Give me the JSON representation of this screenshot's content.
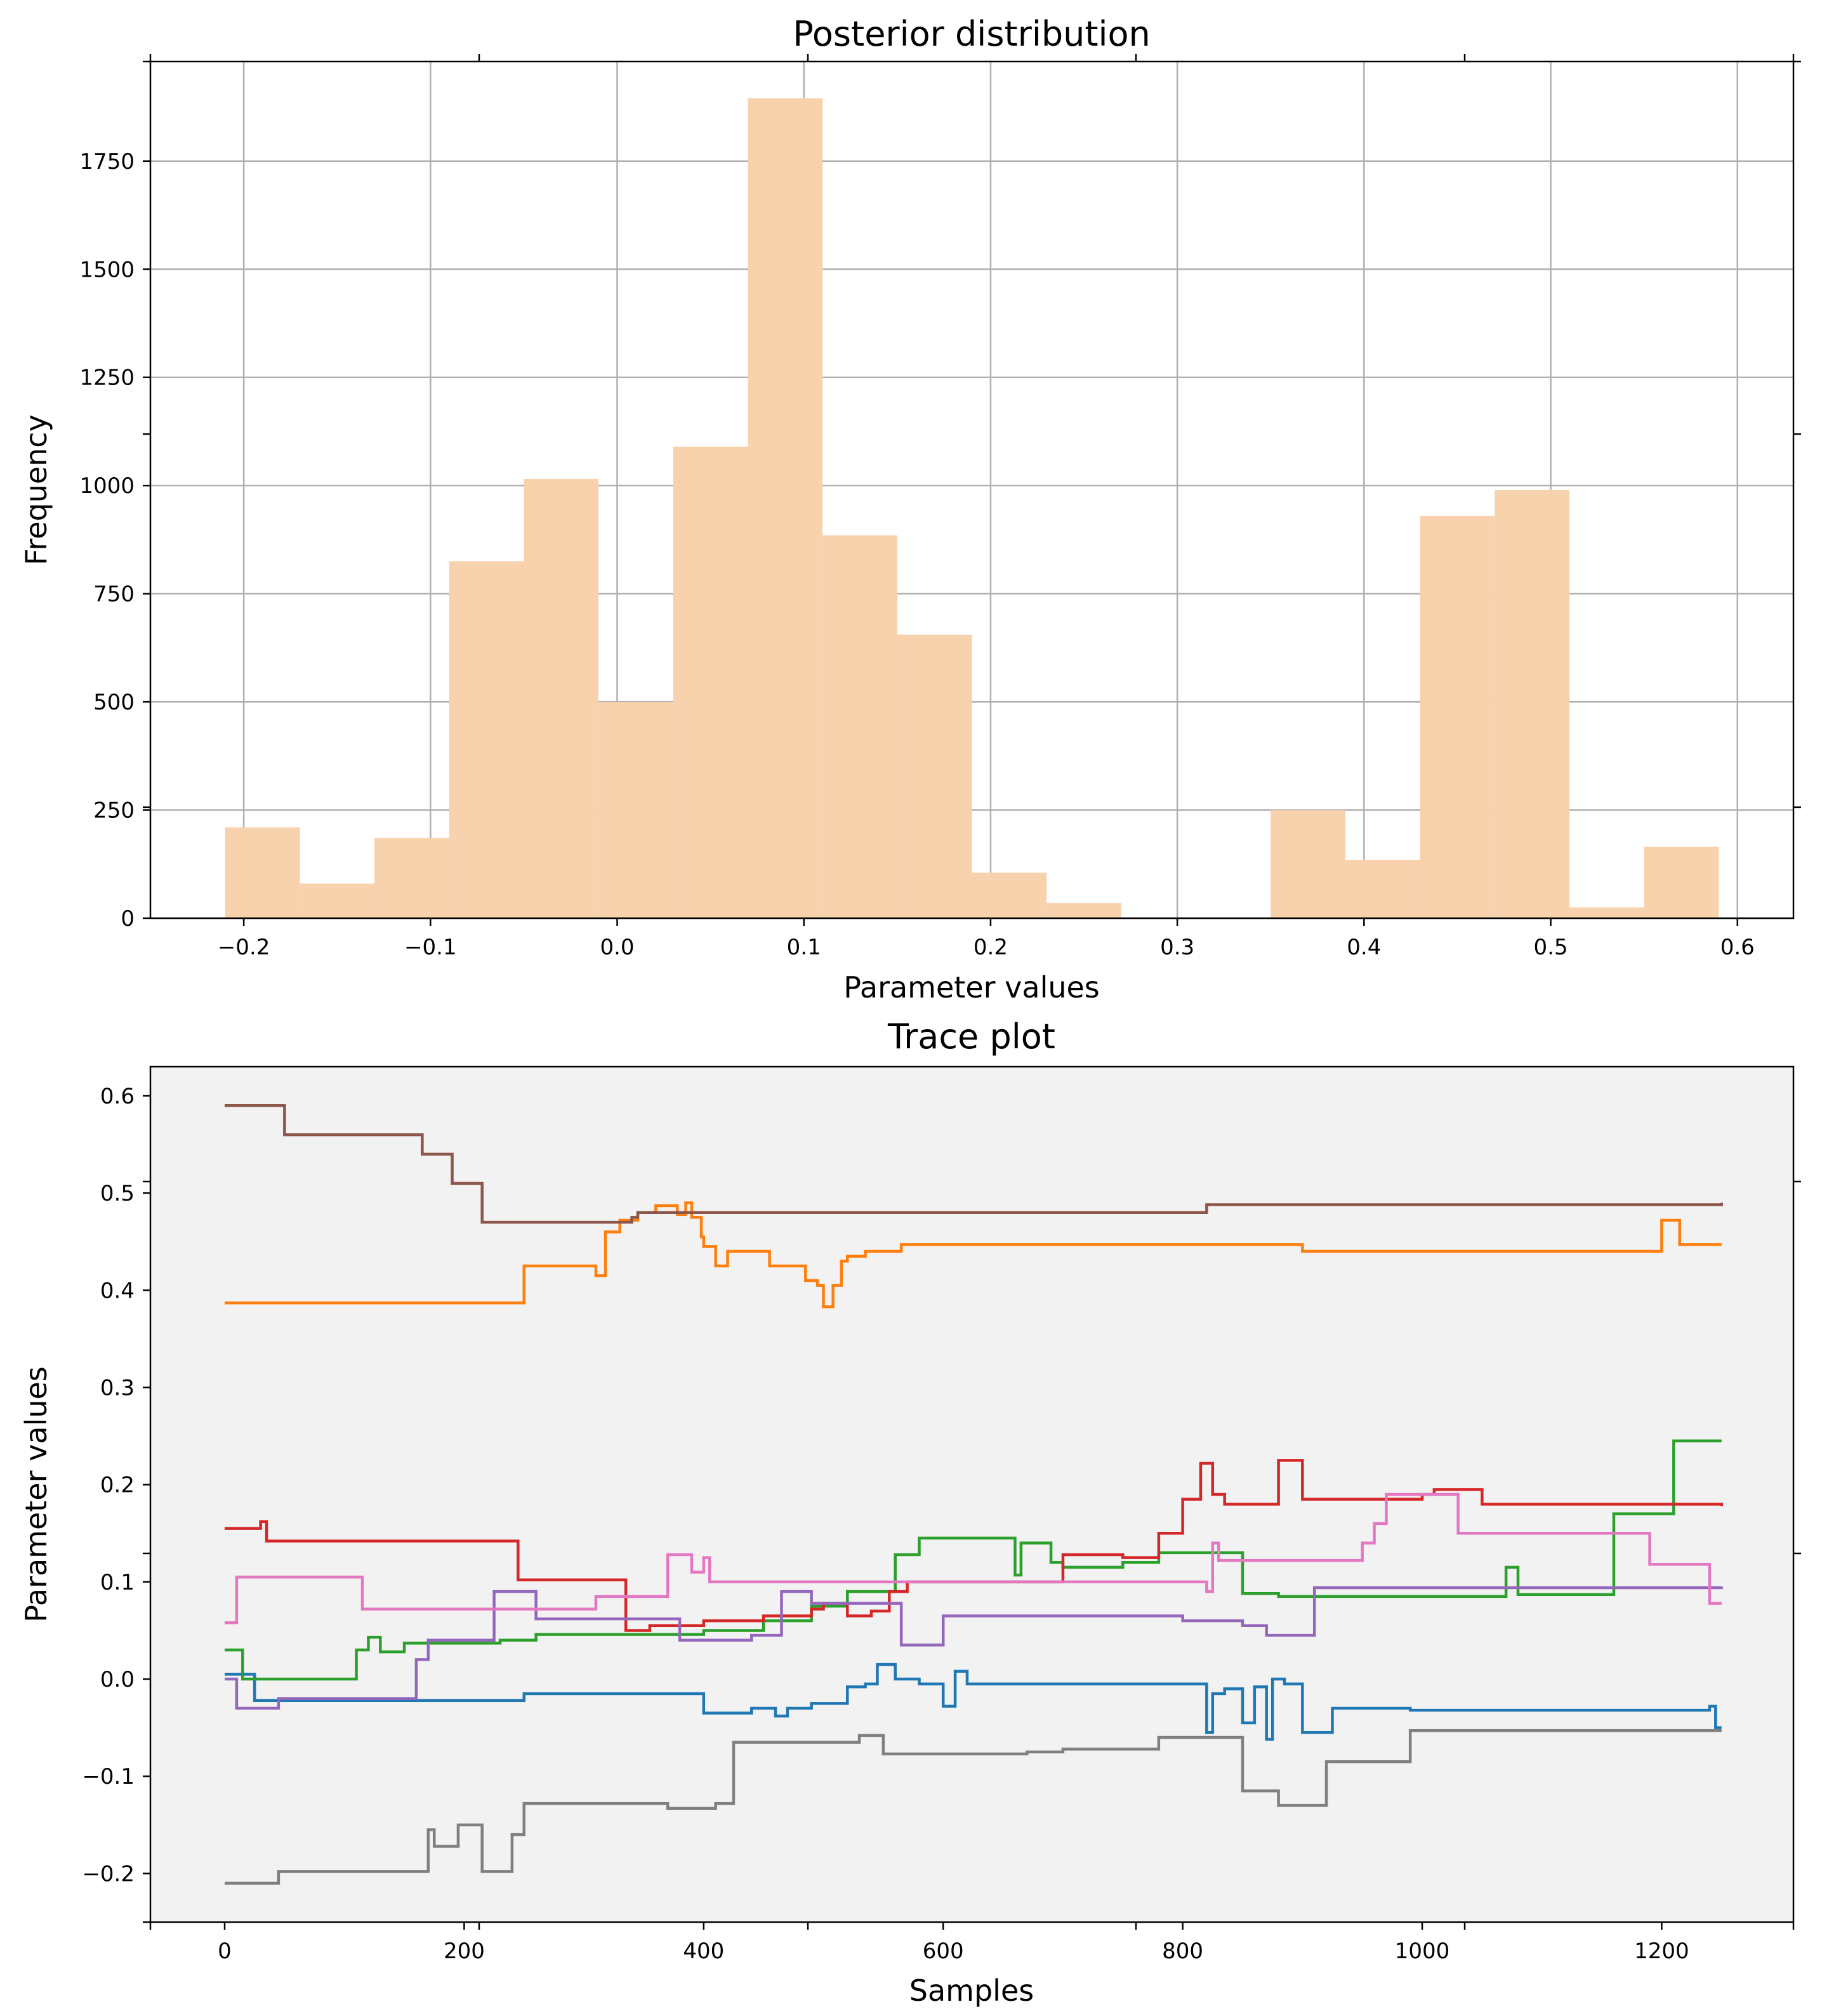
{
  "chart_data": [
    {
      "type": "bar",
      "title": "Posterior distribution",
      "xlabel": "Parameter values",
      "ylabel": "Frequency",
      "xlim": [
        -0.25,
        0.63
      ],
      "ylim": [
        0,
        1980
      ],
      "grid": true,
      "bar_color": "#f8d1ad",
      "x_ticks": [
        -0.2,
        -0.1,
        0.0,
        0.1,
        0.2,
        0.3,
        0.4,
        0.5,
        0.6
      ],
      "x_tick_labels": [
        "−0.2",
        "−0.1",
        "0.0",
        "0.1",
        "0.2",
        "0.3",
        "0.4",
        "0.5",
        "0.6"
      ],
      "y_ticks": [
        0,
        250,
        500,
        750,
        1000,
        1250,
        1500,
        1750
      ],
      "y_tick_labels": [
        "0",
        "250",
        "500",
        "750",
        "1000",
        "1250",
        "1500",
        "1750"
      ],
      "bin_edges": [
        -0.21,
        -0.17,
        -0.13,
        -0.09,
        -0.05,
        -0.01,
        0.03,
        0.07,
        0.11,
        0.15,
        0.19,
        0.23,
        0.27,
        0.31,
        0.35,
        0.39,
        0.43,
        0.47,
        0.51,
        0.55,
        0.59
      ],
      "values": [
        210,
        80,
        185,
        825,
        1015,
        500,
        1090,
        1895,
        885,
        655,
        105,
        35,
        0,
        0,
        250,
        135,
        930,
        990,
        25,
        165
      ]
    },
    {
      "type": "line",
      "title": "Trace plot",
      "xlabel": "Samples",
      "ylabel": "Parameter values",
      "xlim": [
        -62,
        1310
      ],
      "ylim": [
        -0.25,
        0.63
      ],
      "grid": false,
      "background": "#f2f2f2",
      "x_ticks": [
        0,
        200,
        400,
        600,
        800,
        1000,
        1200
      ],
      "x_tick_labels": [
        "0",
        "200",
        "400",
        "600",
        "800",
        "1000",
        "1200"
      ],
      "y_ticks": [
        -0.2,
        -0.1,
        0.0,
        0.1,
        0.2,
        0.3,
        0.4,
        0.5,
        0.6
      ],
      "y_tick_labels": [
        "−0.2",
        "−0.1",
        "0.0",
        "0.1",
        "0.2",
        "0.3",
        "0.4",
        "0.5",
        "0.6"
      ],
      "series": [
        {
          "color": "#1f77b4",
          "steps": [
            [
              0,
              0.005
            ],
            [
              25,
              -0.022
            ],
            [
              250,
              -0.015
            ],
            [
              400,
              -0.035
            ],
            [
              440,
              -0.03
            ],
            [
              460,
              -0.038
            ],
            [
              470,
              -0.03
            ],
            [
              490,
              -0.025
            ],
            [
              520,
              -0.008
            ],
            [
              535,
              -0.005
            ],
            [
              545,
              0.015
            ],
            [
              560,
              0.0
            ],
            [
              580,
              -0.005
            ],
            [
              600,
              -0.028
            ],
            [
              610,
              0.008
            ],
            [
              620,
              -0.005
            ],
            [
              820,
              -0.055
            ],
            [
              825,
              -0.015
            ],
            [
              835,
              -0.01
            ],
            [
              850,
              -0.045
            ],
            [
              860,
              -0.008
            ],
            [
              870,
              -0.062
            ],
            [
              875,
              0.0
            ],
            [
              885,
              -0.005
            ],
            [
              900,
              -0.055
            ],
            [
              925,
              -0.03
            ],
            [
              990,
              -0.032
            ],
            [
              1240,
              -0.028
            ],
            [
              1245,
              -0.05
            ]
          ]
        },
        {
          "color": "#ff7f0e",
          "steps": [
            [
              0,
              0.387
            ],
            [
              250,
              0.425
            ],
            [
              310,
              0.415
            ],
            [
              318,
              0.46
            ],
            [
              330,
              0.472
            ],
            [
              345,
              0.48
            ],
            [
              360,
              0.487
            ],
            [
              378,
              0.478
            ],
            [
              385,
              0.49
            ],
            [
              390,
              0.475
            ],
            [
              398,
              0.455
            ],
            [
              400,
              0.445
            ],
            [
              410,
              0.425
            ],
            [
              420,
              0.44
            ],
            [
              455,
              0.425
            ],
            [
              485,
              0.41
            ],
            [
              495,
              0.405
            ],
            [
              500,
              0.383
            ],
            [
              508,
              0.405
            ],
            [
              515,
              0.43
            ],
            [
              520,
              0.435
            ],
            [
              535,
              0.44
            ],
            [
              565,
              0.447
            ],
            [
              900,
              0.44
            ],
            [
              1200,
              0.472
            ],
            [
              1215,
              0.447
            ]
          ]
        },
        {
          "color": "#2ca02c",
          "steps": [
            [
              0,
              0.03
            ],
            [
              15,
              0.0
            ],
            [
              110,
              0.03
            ],
            [
              120,
              0.043
            ],
            [
              130,
              0.028
            ],
            [
              150,
              0.037
            ],
            [
              230,
              0.04
            ],
            [
              260,
              0.046
            ],
            [
              400,
              0.05
            ],
            [
              450,
              0.06
            ],
            [
              490,
              0.075
            ],
            [
              520,
              0.09
            ],
            [
              560,
              0.128
            ],
            [
              580,
              0.145
            ],
            [
              660,
              0.107
            ],
            [
              665,
              0.14
            ],
            [
              690,
              0.12
            ],
            [
              700,
              0.115
            ],
            [
              750,
              0.12
            ],
            [
              780,
              0.13
            ],
            [
              850,
              0.088
            ],
            [
              880,
              0.085
            ],
            [
              1080,
              0.087
            ],
            [
              1070,
              0.115
            ],
            [
              1160,
              0.17
            ],
            [
              1210,
              0.245
            ]
          ]
        },
        {
          "color": "#d62728",
          "steps": [
            [
              0,
              0.155
            ],
            [
              30,
              0.162
            ],
            [
              35,
              0.142
            ],
            [
              245,
              0.102
            ],
            [
              335,
              0.05
            ],
            [
              355,
              0.055
            ],
            [
              400,
              0.06
            ],
            [
              450,
              0.065
            ],
            [
              490,
              0.072
            ],
            [
              500,
              0.078
            ],
            [
              520,
              0.065
            ],
            [
              540,
              0.07
            ],
            [
              555,
              0.09
            ],
            [
              570,
              0.1
            ],
            [
              700,
              0.128
            ],
            [
              750,
              0.125
            ],
            [
              780,
              0.15
            ],
            [
              800,
              0.185
            ],
            [
              815,
              0.222
            ],
            [
              825,
              0.19
            ],
            [
              835,
              0.18
            ],
            [
              880,
              0.225
            ],
            [
              900,
              0.185
            ],
            [
              1000,
              0.19
            ],
            [
              1010,
              0.195
            ],
            [
              1050,
              0.18
            ],
            [
              1250,
              0.178
            ]
          ]
        },
        {
          "color": "#9467bd",
          "steps": [
            [
              0,
              0.0
            ],
            [
              10,
              -0.03
            ],
            [
              45,
              -0.02
            ],
            [
              160,
              0.02
            ],
            [
              170,
              0.04
            ],
            [
              225,
              0.09
            ],
            [
              260,
              0.062
            ],
            [
              380,
              0.04
            ],
            [
              440,
              0.045
            ],
            [
              465,
              0.09
            ],
            [
              490,
              0.078
            ],
            [
              565,
              0.035
            ],
            [
              600,
              0.065
            ],
            [
              800,
              0.06
            ],
            [
              850,
              0.055
            ],
            [
              870,
              0.045
            ],
            [
              910,
              0.094
            ],
            [
              1250,
              0.095
            ]
          ]
        },
        {
          "color": "#8c564b",
          "steps": [
            [
              0,
              0.59
            ],
            [
              50,
              0.56
            ],
            [
              165,
              0.54
            ],
            [
              190,
              0.51
            ],
            [
              215,
              0.47
            ],
            [
              340,
              0.475
            ],
            [
              345,
              0.48
            ],
            [
              820,
              0.488
            ],
            [
              1250,
              0.49
            ]
          ]
        },
        {
          "color": "#e377c2",
          "steps": [
            [
              0,
              0.058
            ],
            [
              10,
              0.105
            ],
            [
              115,
              0.072
            ],
            [
              310,
              0.085
            ],
            [
              370,
              0.128
            ],
            [
              390,
              0.11
            ],
            [
              400,
              0.125
            ],
            [
              405,
              0.1
            ],
            [
              820,
              0.09
            ],
            [
              825,
              0.14
            ],
            [
              830,
              0.122
            ],
            [
              950,
              0.14
            ],
            [
              960,
              0.16
            ],
            [
              970,
              0.19
            ],
            [
              1030,
              0.15
            ],
            [
              1190,
              0.118
            ],
            [
              1240,
              0.078
            ]
          ]
        },
        {
          "color": "#7f7f7f",
          "steps": [
            [
              0,
              -0.21
            ],
            [
              45,
              -0.198
            ],
            [
              170,
              -0.155
            ],
            [
              175,
              -0.172
            ],
            [
              195,
              -0.15
            ],
            [
              215,
              -0.198
            ],
            [
              240,
              -0.16
            ],
            [
              250,
              -0.128
            ],
            [
              370,
              -0.133
            ],
            [
              410,
              -0.128
            ],
            [
              425,
              -0.065
            ],
            [
              530,
              -0.058
            ],
            [
              550,
              -0.077
            ],
            [
              670,
              -0.075
            ],
            [
              700,
              -0.072
            ],
            [
              780,
              -0.06
            ],
            [
              850,
              -0.115
            ],
            [
              880,
              -0.13
            ],
            [
              920,
              -0.085
            ],
            [
              990,
              -0.053
            ],
            [
              1250,
              -0.053
            ]
          ]
        }
      ]
    }
  ]
}
